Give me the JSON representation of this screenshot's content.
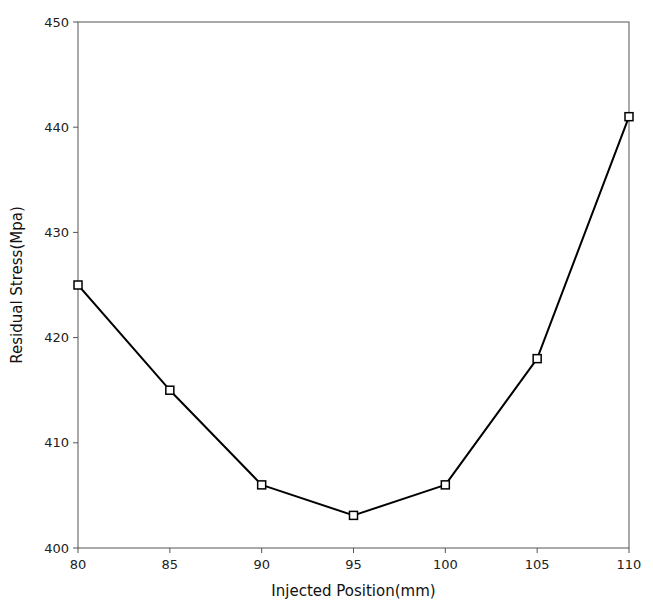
{
  "chart_data": {
    "type": "line",
    "x": [
      80,
      85,
      90,
      95,
      100,
      105,
      110
    ],
    "values": [
      425.0,
      415.0,
      406.0,
      403.1,
      406.0,
      418.0,
      441.0
    ],
    "xlim": [
      80,
      110
    ],
    "ylim": [
      400,
      450
    ],
    "xticks": [
      80,
      85,
      90,
      95,
      100,
      105,
      110
    ],
    "yticks": [
      400,
      410,
      420,
      430,
      440,
      450
    ],
    "xlabel": "Injected Position(mm)",
    "ylabel": "Residual Stress(Mpa)",
    "color": "#000000",
    "marker": "square",
    "grid": false
  }
}
